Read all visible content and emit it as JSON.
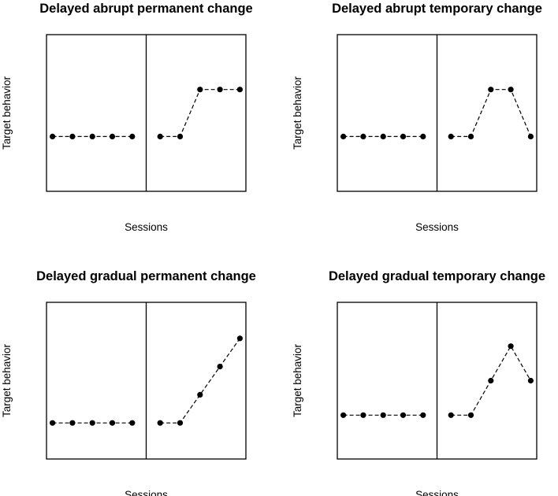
{
  "chart_data": [
    {
      "type": "line",
      "title": "Delayed abrupt permanent change",
      "xlabel": "Sessions",
      "ylabel": "Target behavior",
      "x": [
        1,
        2,
        3,
        4,
        5,
        6,
        7,
        8,
        9,
        10
      ],
      "phase_change_after": 5,
      "ylim": [
        0,
        10
      ],
      "series": [
        {
          "phase": "baseline",
          "x": [
            1,
            2,
            3,
            4,
            5
          ],
          "values": [
            3.5,
            3.5,
            3.5,
            3.5,
            3.5
          ]
        },
        {
          "phase": "treatment",
          "x": [
            6,
            7,
            8,
            9,
            10
          ],
          "values": [
            3.5,
            3.5,
            6.5,
            6.5,
            6.5
          ]
        }
      ],
      "grid": false,
      "line_style": "dashed",
      "marker": "filled-circle"
    },
    {
      "type": "line",
      "title": "Delayed abrupt temporary change",
      "xlabel": "Sessions",
      "ylabel": "Target behavior",
      "x": [
        1,
        2,
        3,
        4,
        5,
        6,
        7,
        8,
        9,
        10
      ],
      "phase_change_after": 5,
      "ylim": [
        0,
        10
      ],
      "series": [
        {
          "phase": "baseline",
          "x": [
            1,
            2,
            3,
            4,
            5
          ],
          "values": [
            3.5,
            3.5,
            3.5,
            3.5,
            3.5
          ]
        },
        {
          "phase": "treatment",
          "x": [
            6,
            7,
            8,
            9,
            10
          ],
          "values": [
            3.5,
            3.5,
            6.5,
            6.5,
            3.5
          ]
        }
      ],
      "grid": false,
      "line_style": "dashed",
      "marker": "filled-circle"
    },
    {
      "type": "line",
      "title": "Delayed gradual permanent change",
      "xlabel": "Sessions",
      "ylabel": "Target behavior",
      "x": [
        1,
        2,
        3,
        4,
        5,
        6,
        7,
        8,
        9,
        10
      ],
      "phase_change_after": 5,
      "ylim": [
        0,
        10
      ],
      "series": [
        {
          "phase": "baseline",
          "x": [
            1,
            2,
            3,
            4,
            5
          ],
          "values": [
            2.3,
            2.3,
            2.3,
            2.3,
            2.3
          ]
        },
        {
          "phase": "treatment",
          "x": [
            6,
            7,
            8,
            9,
            10
          ],
          "values": [
            2.3,
            2.3,
            4.1,
            5.9,
            7.7
          ]
        }
      ],
      "grid": false,
      "line_style": "dashed",
      "marker": "filled-circle"
    },
    {
      "type": "line",
      "title": "Delayed gradual temporary change",
      "xlabel": "Sessions",
      "ylabel": "Target behavior",
      "x": [
        1,
        2,
        3,
        4,
        5,
        6,
        7,
        8,
        9,
        10
      ],
      "phase_change_after": 5,
      "ylim": [
        0,
        10
      ],
      "series": [
        {
          "phase": "baseline",
          "x": [
            1,
            2,
            3,
            4,
            5
          ],
          "values": [
            2.8,
            2.8,
            2.8,
            2.8,
            2.8
          ]
        },
        {
          "phase": "treatment",
          "x": [
            6,
            7,
            8,
            9,
            10
          ],
          "values": [
            2.8,
            2.8,
            5.0,
            7.2,
            5.0
          ]
        }
      ],
      "grid": false,
      "line_style": "dashed",
      "marker": "filled-circle"
    }
  ]
}
